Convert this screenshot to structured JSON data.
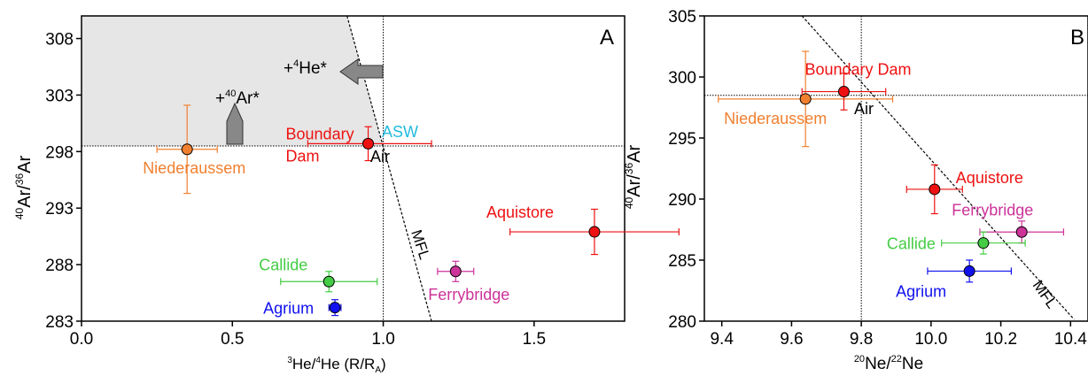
{
  "chart_data": [
    {
      "type": "scatter",
      "panel_label": "A",
      "xlabel": "³He/⁴He (R/R",
      "xlabel_sub": "A",
      "xlabel_end": ")",
      "ylabel": "⁴⁰Ar/³⁶Ar",
      "xlim": [
        0,
        1.8
      ],
      "ylim": [
        283,
        310
      ],
      "xticks": [
        "0.0",
        "0.5",
        "1.0",
        "1.5"
      ],
      "xtick_values": [
        0,
        0.5,
        1.0,
        1.5
      ],
      "yticks": [
        "283",
        "288",
        "293",
        "298",
        "303",
        "308"
      ],
      "ytick_values": [
        283,
        288,
        293,
        298,
        303,
        308
      ],
      "air_ref_x": 1.0,
      "air_ref_y": 298.5,
      "mfl_label": "MFL",
      "air_label": "Air",
      "asw_label": "ASW",
      "arrow_ar_label": "+⁴⁰Ar*",
      "arrow_he_label": "+⁴He*",
      "points": [
        {
          "name": "Niederaussem",
          "x": 0.35,
          "y": 298.2,
          "xerr": 0.1,
          "yerr": 3.9,
          "color": "#f08030",
          "label_color": "#f08030"
        },
        {
          "name": "Boundary Dam",
          "x": 0.95,
          "y": 298.7,
          "xerr_lo": 0.2,
          "xerr_hi": 0.21,
          "yerr": 1.5,
          "color": "#ee1111",
          "label_color": "#ee1111"
        },
        {
          "name": "Aquistore",
          "x": 1.7,
          "y": 290.9,
          "xerr": 0.28,
          "yerr": 2.0,
          "color": "#ee1111",
          "label_color": "#ee1111"
        },
        {
          "name": "Ferrybridge",
          "x": 1.24,
          "y": 287.4,
          "xerr": 0.06,
          "yerr": 0.9,
          "color": "#cc3399",
          "label_color": "#cc3399"
        },
        {
          "name": "Callide",
          "x": 0.82,
          "y": 286.5,
          "xerr": 0.16,
          "yerr": 0.9,
          "color": "#44cc44",
          "label_color": "#44cc44"
        },
        {
          "name": "Agrium",
          "x": 0.84,
          "y": 284.2,
          "xerr": 0.02,
          "yerr": 0.7,
          "color": "#1111ee",
          "label_color": "#1111ee"
        }
      ]
    },
    {
      "type": "scatter",
      "panel_label": "B",
      "xlabel": "²⁰Ne/²²Ne",
      "ylabel": "⁴⁰Ar/³⁶Ar",
      "xlim": [
        9.35,
        10.45
      ],
      "ylim": [
        280,
        305
      ],
      "xticks": [
        "9.4",
        "9.6",
        "9.8",
        "10.0",
        "10.2",
        "10.4"
      ],
      "xtick_values": [
        9.4,
        9.6,
        9.8,
        10.0,
        10.2,
        10.4
      ],
      "yticks": [
        "280",
        "285",
        "290",
        "295",
        "300",
        "305"
      ],
      "ytick_values": [
        280,
        285,
        290,
        295,
        300,
        305
      ],
      "air_ref_x": 9.8,
      "air_ref_y": 298.5,
      "mfl_label": "MFL",
      "air_label": "Air",
      "points": [
        {
          "name": "Niederaussem",
          "x": 9.64,
          "y": 298.2,
          "xerr": 0.25,
          "yerr": 3.9,
          "color": "#f08030",
          "label_color": "#f08030"
        },
        {
          "name": "Boundary Dam",
          "x": 9.75,
          "y": 298.8,
          "xerr": 0.12,
          "yerr": 1.5,
          "color": "#ee1111",
          "label_color": "#ee1111"
        },
        {
          "name": "Aquistore",
          "x": 10.01,
          "y": 290.8,
          "xerr": 0.08,
          "yerr": 2.0,
          "color": "#ee1111",
          "label_color": "#ee1111"
        },
        {
          "name": "Ferrybridge",
          "x": 10.26,
          "y": 287.3,
          "xerr": 0.12,
          "yerr": 0.9,
          "color": "#cc3399",
          "label_color": "#cc3399"
        },
        {
          "name": "Callide",
          "x": 10.15,
          "y": 286.4,
          "xerr": 0.12,
          "yerr": 0.9,
          "color": "#44cc44",
          "label_color": "#44cc44"
        },
        {
          "name": "Agrium",
          "x": 10.11,
          "y": 284.1,
          "xerr": 0.12,
          "yerr": 0.9,
          "color": "#1111ee",
          "label_color": "#1111ee"
        }
      ]
    }
  ]
}
